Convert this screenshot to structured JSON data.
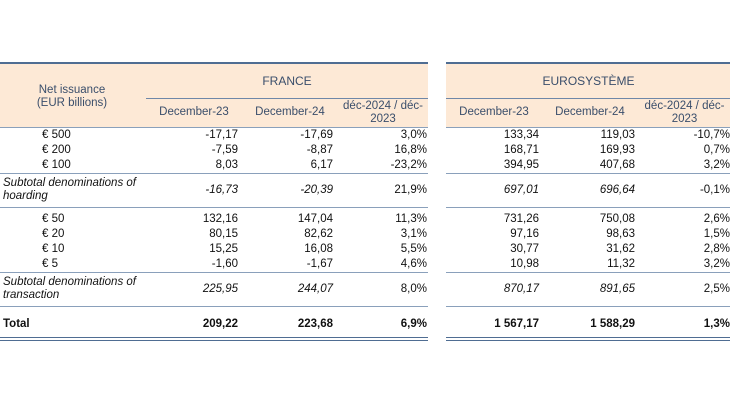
{
  "header": {
    "row_label_line1": "Net issuance",
    "row_label_line2": "(EUR billions)",
    "france_title": "FRANCE",
    "euro_title": "EUROSYSTÈME",
    "col1": "December-23",
    "col2": "December-24",
    "col3_line1": "déc-2024 / déc-",
    "col3_line2": "2023"
  },
  "rows": [
    {
      "label": "€ 500",
      "fr": [
        "-17,17",
        "-17,69",
        "3,0%"
      ],
      "eu": [
        "133,34",
        "119,03",
        "-10,7%"
      ]
    },
    {
      "label": "€ 200",
      "fr": [
        "-7,59",
        "-8,87",
        "16,8%"
      ],
      "eu": [
        "168,71",
        "169,93",
        "0,7%"
      ]
    },
    {
      "label": "€ 100",
      "fr": [
        "8,03",
        "6,17",
        "-23,2%"
      ],
      "eu": [
        "394,95",
        "407,68",
        "3,2%"
      ]
    },
    {
      "label1": "Subtotal denominations of",
      "label2": "hoarding",
      "fr": [
        "-16,73",
        "-20,39",
        "21,9%"
      ],
      "eu": [
        "697,01",
        "696,64",
        "-0,1%"
      ]
    },
    {
      "label": "€ 50",
      "fr": [
        "132,16",
        "147,04",
        "11,3%"
      ],
      "eu": [
        "731,26",
        "750,08",
        "2,6%"
      ]
    },
    {
      "label": "€ 20",
      "fr": [
        "80,15",
        "82,62",
        "3,1%"
      ],
      "eu": [
        "97,16",
        "98,63",
        "1,5%"
      ]
    },
    {
      "label": "€ 10",
      "fr": [
        "15,25",
        "16,08",
        "5,5%"
      ],
      "eu": [
        "30,77",
        "31,62",
        "2,8%"
      ]
    },
    {
      "label": "€ 5",
      "fr": [
        "-1,60",
        "-1,67",
        "4,6%"
      ],
      "eu": [
        "10,98",
        "11,32",
        "3,2%"
      ]
    },
    {
      "label1": "Subtotal denominations of",
      "label2": "transaction",
      "fr": [
        "225,95",
        "244,07",
        "8,0%"
      ],
      "eu": [
        "870,17",
        "891,65",
        "2,5%"
      ]
    },
    {
      "label": "Total",
      "fr": [
        "209,22",
        "223,68",
        "6,9%"
      ],
      "eu": [
        "1 567,17",
        "1 588,29",
        "1,3%"
      ]
    }
  ]
}
